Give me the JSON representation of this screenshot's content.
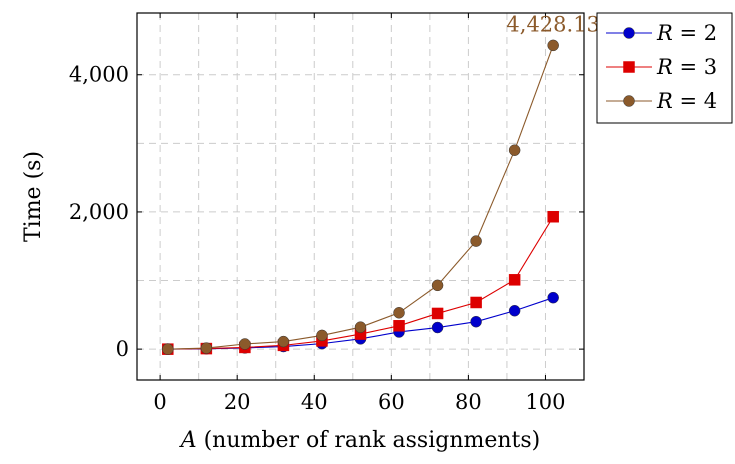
{
  "chart_data": {
    "type": "line",
    "xlabel_var": "A",
    "xlabel_rest": " (number of rank assignments)",
    "ylabel": "Time (s)",
    "xlim": [
      -6,
      110
    ],
    "ylim": [
      -450,
      4900
    ],
    "x_ticks": [
      0,
      20,
      40,
      60,
      80,
      100
    ],
    "x_tick_labels": [
      "0",
      "20",
      "40",
      "60",
      "80",
      "100"
    ],
    "y_ticks": [
      0,
      2000,
      4000
    ],
    "y_tick_labels": [
      "0",
      "2,000",
      "4,000"
    ],
    "x_minor_grid": [
      10,
      30,
      50,
      70,
      90
    ],
    "y_minor_grid": [
      1000,
      3000
    ],
    "grid": true,
    "legend_position": "top-right-outside",
    "x": [
      2,
      12,
      22,
      32,
      42,
      52,
      62,
      72,
      82,
      92,
      102
    ],
    "series": [
      {
        "name_var": "R",
        "name_rest": " = 2",
        "color": "#0000cc",
        "marker": "circle",
        "values": [
          0,
          5,
          18,
          38,
          80,
          150,
          250,
          315,
          400,
          560,
          750
        ]
      },
      {
        "name_var": "R",
        "name_rest": " = 3",
        "color": "#dd0000",
        "marker": "square",
        "values": [
          0,
          8,
          25,
          55,
          120,
          220,
          340,
          520,
          680,
          1010,
          1930
        ]
      },
      {
        "name_var": "R",
        "name_rest": " = 4",
        "color": "#8b5a2b",
        "marker": "circle",
        "values": [
          0,
          15,
          75,
          110,
          200,
          320,
          530,
          930,
          1575,
          2900,
          4428.13
        ]
      }
    ],
    "annotation": {
      "text": "4,428.13",
      "series_index": 2,
      "point_index": 10,
      "color": "#8b5a2b"
    }
  }
}
